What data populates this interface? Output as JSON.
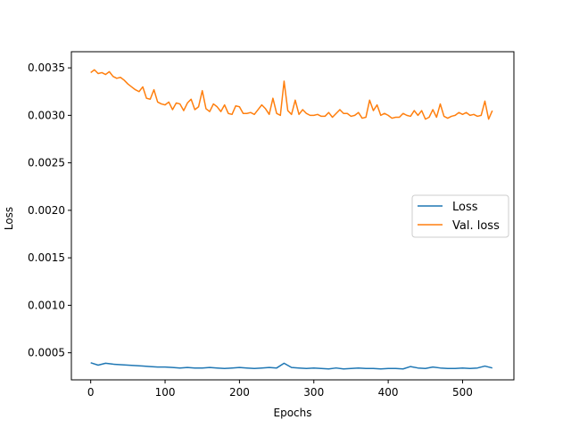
{
  "chart_data": {
    "type": "line",
    "title": "",
    "xlabel": "Epochs",
    "ylabel": "Loss",
    "xlim": [
      -26,
      569
    ],
    "ylim": [
      0.000215,
      0.00367
    ],
    "xticks": [
      0,
      100,
      200,
      300,
      400,
      500
    ],
    "yticks": [
      0.0005,
      0.001,
      0.0015,
      0.002,
      0.0025,
      0.003,
      0.0035
    ],
    "xtick_labels": [
      "0",
      "100",
      "200",
      "300",
      "400",
      "500"
    ],
    "ytick_labels": [
      "0.0005",
      "0.0010",
      "0.0015",
      "0.0020",
      "0.0025",
      "0.0030",
      "0.0035"
    ],
    "grid": false,
    "legend_position": "center-right",
    "series": [
      {
        "name": "Loss",
        "color": "#1f77b4",
        "x": [
          0,
          10,
          20,
          30,
          40,
          50,
          60,
          70,
          80,
          90,
          100,
          110,
          120,
          130,
          140,
          150,
          160,
          170,
          180,
          190,
          200,
          210,
          220,
          230,
          240,
          250,
          260,
          270,
          280,
          290,
          300,
          310,
          320,
          330,
          340,
          350,
          360,
          370,
          380,
          390,
          400,
          410,
          420,
          430,
          440,
          450,
          460,
          470,
          480,
          490,
          500,
          510,
          520,
          530,
          540
        ],
        "y": [
          0.000395,
          0.00037,
          0.00039,
          0.00038,
          0.000375,
          0.00037,
          0.000365,
          0.00036,
          0.000355,
          0.00035,
          0.00035,
          0.000345,
          0.00034,
          0.000345,
          0.00034,
          0.00034,
          0.000345,
          0.00034,
          0.000335,
          0.00034,
          0.000345,
          0.00034,
          0.000335,
          0.00034,
          0.000345,
          0.00034,
          0.00039,
          0.000345,
          0.00034,
          0.000335,
          0.00034,
          0.000335,
          0.00033,
          0.00034,
          0.00033,
          0.000335,
          0.00034,
          0.000335,
          0.000335,
          0.00033,
          0.000335,
          0.000335,
          0.00033,
          0.000355,
          0.00034,
          0.000335,
          0.00035,
          0.00034,
          0.000335,
          0.000335,
          0.00034,
          0.000335,
          0.00034,
          0.00036,
          0.00034
        ]
      },
      {
        "name": "Val. loss",
        "color": "#ff7f0e",
        "x": [
          0,
          5,
          10,
          15,
          20,
          25,
          30,
          35,
          40,
          45,
          50,
          55,
          60,
          65,
          70,
          75,
          80,
          85,
          90,
          95,
          100,
          105,
          110,
          115,
          120,
          125,
          130,
          135,
          140,
          145,
          150,
          155,
          160,
          165,
          170,
          175,
          180,
          185,
          190,
          195,
          200,
          205,
          210,
          215,
          220,
          225,
          230,
          235,
          240,
          245,
          250,
          255,
          260,
          265,
          270,
          275,
          280,
          285,
          290,
          295,
          300,
          305,
          310,
          315,
          320,
          325,
          330,
          335,
          340,
          345,
          350,
          355,
          360,
          365,
          370,
          375,
          380,
          385,
          390,
          395,
          400,
          405,
          410,
          415,
          420,
          425,
          430,
          435,
          440,
          445,
          450,
          455,
          460,
          465,
          470,
          475,
          480,
          485,
          490,
          495,
          500,
          505,
          510,
          515,
          520,
          525,
          530,
          535,
          540
        ],
        "y": [
          0.00345,
          0.00348,
          0.00344,
          0.00345,
          0.00343,
          0.00346,
          0.00341,
          0.00339,
          0.0034,
          0.00337,
          0.00333,
          0.0033,
          0.00327,
          0.00325,
          0.0033,
          0.00318,
          0.00317,
          0.00327,
          0.00314,
          0.00312,
          0.00311,
          0.00314,
          0.00306,
          0.00313,
          0.00312,
          0.00305,
          0.00313,
          0.00317,
          0.00306,
          0.00309,
          0.00326,
          0.00307,
          0.00304,
          0.00312,
          0.00309,
          0.00304,
          0.00311,
          0.00302,
          0.00301,
          0.0031,
          0.00309,
          0.00302,
          0.00302,
          0.00303,
          0.00301,
          0.00306,
          0.00311,
          0.00307,
          0.00301,
          0.00318,
          0.00302,
          0.003,
          0.00336,
          0.00305,
          0.00301,
          0.00316,
          0.00301,
          0.00306,
          0.00302,
          0.003,
          0.003,
          0.00301,
          0.00299,
          0.00299,
          0.00303,
          0.00298,
          0.00302,
          0.00306,
          0.00302,
          0.00302,
          0.00299,
          0.003,
          0.00303,
          0.00297,
          0.00298,
          0.00316,
          0.00305,
          0.00311,
          0.003,
          0.00302,
          0.003,
          0.00297,
          0.00298,
          0.00298,
          0.00302,
          0.003,
          0.00299,
          0.00305,
          0.003,
          0.00305,
          0.00296,
          0.00298,
          0.00306,
          0.00298,
          0.00312,
          0.00299,
          0.00297,
          0.00299,
          0.003,
          0.00303,
          0.00301,
          0.00303,
          0.003,
          0.00301,
          0.00299,
          0.003,
          0.00315,
          0.00296,
          0.00305
        ]
      }
    ]
  }
}
